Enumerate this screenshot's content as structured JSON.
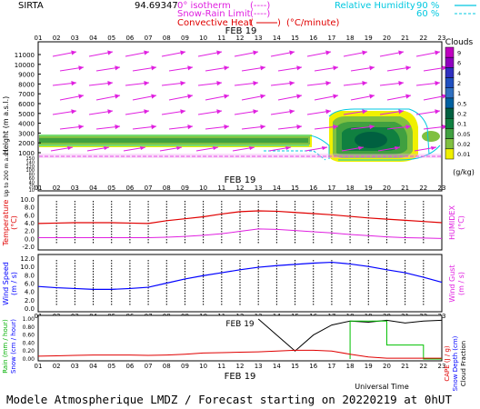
{
  "header": {
    "site": "SIRTA",
    "coords": "94.69347",
    "legend_isotherm": "0° isotherm",
    "legend_snow_rain": "Snow-Rain Limit",
    "legend_convective": "Convective Heat",
    "legend_convective_unit": "(°C/minute)",
    "legend_rh": "Relative Humidity",
    "rh_90": "90 %",
    "rh_60": "60 %",
    "legend_dashes": "(----)"
  },
  "colors": {
    "magenta": "#e020e0",
    "red": "#e00000",
    "cyan": "#00c8e0",
    "blue": "#0000ff",
    "green": "#00b000",
    "black": "#000000"
  },
  "hours": [
    "01",
    "02",
    "03",
    "04",
    "05",
    "06",
    "07",
    "08",
    "09",
    "10",
    "11",
    "12",
    "13",
    "14",
    "15",
    "16",
    "17",
    "18",
    "19",
    "20",
    "21",
    "22",
    "23"
  ],
  "date_label": "FEB 19",
  "clouds_panel": {
    "ylabel": "Height  (m a.s.l.)",
    "ylabel2": "Up to 200 m a.s.l.",
    "yticks_upper": [
      "11000",
      "10000",
      "9000",
      "8000",
      "7000",
      "6000",
      "5000",
      "4000",
      "3000",
      "2000",
      "1000"
    ],
    "yticks_lower": [
      "150",
      "140",
      "120",
      "100",
      "80",
      "60",
      "40",
      "20",
      "10"
    ],
    "colorbar_title": "Clouds",
    "colorbar_labels": [
      "9",
      "6",
      "4",
      "2",
      "1",
      "0.5",
      "0.2",
      "0.1",
      "0.05",
      "0.02",
      "0.01"
    ],
    "colorbar_colors": [
      "#c000c0",
      "#9000c0",
      "#3030c0",
      "#2050c0",
      "#3070c0",
      "#0060a0",
      "#006040",
      "#108040",
      "#40a040",
      "#80c040",
      "#f0f000"
    ],
    "colorbar_unit": "(g/kg)"
  },
  "temp_panel": {
    "ylabel": "Temperature",
    "ylabel_unit": "(°C)",
    "ylabel_right": "HUMIDEX",
    "ylabel_right_unit": "(°C)",
    "yticks": [
      "10.0",
      "8.0",
      "6.0",
      "4.0",
      "2.0",
      "0.0",
      "-2.0"
    ]
  },
  "wind_panel": {
    "ylabel": "Wind Speed",
    "ylabel_unit": "(m / s)",
    "ylabel_right": "Wind Gust",
    "ylabel_right_unit": "(m / s)",
    "yticks": [
      "12.0",
      "10.0",
      "8.0",
      "6.0",
      "4.0",
      "2.0",
      "0.0"
    ]
  },
  "rain_panel": {
    "ylabel_rain": "Rain (mm / hour)",
    "ylabel_snow": "Snow (cm / hour)",
    "ylabel_cape": "CAPE (J / g)",
    "ylabel_snowdepth": "Snow Depth (cm)",
    "ylabel_cloudfrac": "Cloud Fraction",
    "yticks": [
      "1.00",
      "0.80",
      "0.60",
      "0.40",
      "0.20",
      "0.00"
    ],
    "xlabel": "Universal Time"
  },
  "chart_data": [
    {
      "type": "line",
      "name": "temperature",
      "x": [
        "01",
        "02",
        "03",
        "04",
        "05",
        "06",
        "07",
        "08",
        "09",
        "10",
        "11",
        "12",
        "13",
        "14",
        "15",
        "16",
        "17",
        "18",
        "19",
        "20",
        "21",
        "22",
        "23"
      ],
      "series": [
        {
          "name": "Temperature",
          "values": [
            3.8,
            3.9,
            4.0,
            4.0,
            4.0,
            3.9,
            3.8,
            4.5,
            5.0,
            5.5,
            6.2,
            6.8,
            7.0,
            6.9,
            6.6,
            6.3,
            6.0,
            5.6,
            5.2,
            4.9,
            4.6,
            4.3,
            4.0
          ]
        },
        {
          "name": "HUMIDEX",
          "values": [
            0.2,
            0.2,
            0.2,
            0.2,
            0.2,
            0.2,
            0.2,
            0.3,
            0.5,
            0.8,
            1.2,
            1.8,
            2.4,
            2.3,
            2.0,
            1.7,
            1.4,
            1.0,
            0.7,
            0.4,
            0.2,
            0.1,
            0.0
          ]
        }
      ],
      "ylim": [
        -2.0,
        10.0
      ]
    },
    {
      "type": "line",
      "name": "wind",
      "x": [
        "01",
        "02",
        "03",
        "04",
        "05",
        "06",
        "07",
        "08",
        "09",
        "10",
        "11",
        "12",
        "13",
        "14",
        "15",
        "16",
        "17",
        "18",
        "19",
        "20",
        "21",
        "22",
        "23"
      ],
      "series": [
        {
          "name": "Wind Speed",
          "values": [
            5.2,
            4.9,
            4.7,
            4.5,
            4.5,
            4.7,
            5.0,
            6.0,
            7.0,
            7.8,
            8.5,
            9.2,
            9.8,
            10.2,
            10.5,
            10.8,
            11.0,
            10.6,
            10.0,
            9.2,
            8.5,
            7.4,
            6.2
          ]
        }
      ],
      "ylim": [
        0.0,
        12.0
      ]
    },
    {
      "type": "line",
      "name": "precip",
      "x": [
        "01",
        "02",
        "03",
        "04",
        "05",
        "06",
        "07",
        "08",
        "09",
        "10",
        "11",
        "12",
        "13",
        "14",
        "15",
        "16",
        "17",
        "18",
        "19",
        "20",
        "21",
        "22",
        "23"
      ],
      "series": [
        {
          "name": "Cloud Fraction",
          "values": [
            0.0,
            0.0,
            0.0,
            0.0,
            0.0,
            0.0,
            0.0,
            0.0,
            0.0,
            0.0,
            0.0,
            0.0,
            1.0,
            0.6,
            0.2,
            0.6,
            0.85,
            0.95,
            0.92,
            0.97,
            0.9,
            0.95,
            0.97
          ]
        },
        {
          "name": "Rain",
          "values": [
            0.0,
            0.0,
            0.0,
            0.0,
            0.0,
            0.0,
            0.0,
            0.0,
            0.0,
            0.0,
            0.0,
            0.0,
            0.0,
            0.0,
            0.0,
            0.0,
            0.0,
            0.95,
            0.95,
            0.35,
            0.35,
            0.0,
            0.0
          ]
        },
        {
          "name": "CAPE",
          "values": [
            0.07,
            0.08,
            0.09,
            0.1,
            0.1,
            0.1,
            0.09,
            0.1,
            0.12,
            0.15,
            0.16,
            0.17,
            0.18,
            0.2,
            0.22,
            0.22,
            0.2,
            0.12,
            0.05,
            0.02,
            0.02,
            0.02,
            0.02
          ]
        }
      ],
      "ylim": [
        0.0,
        1.0
      ]
    }
  ],
  "footer": {
    "text": "Modele Atmospherique LMDZ / Forecast starting on 20220219 at 0hUT"
  }
}
